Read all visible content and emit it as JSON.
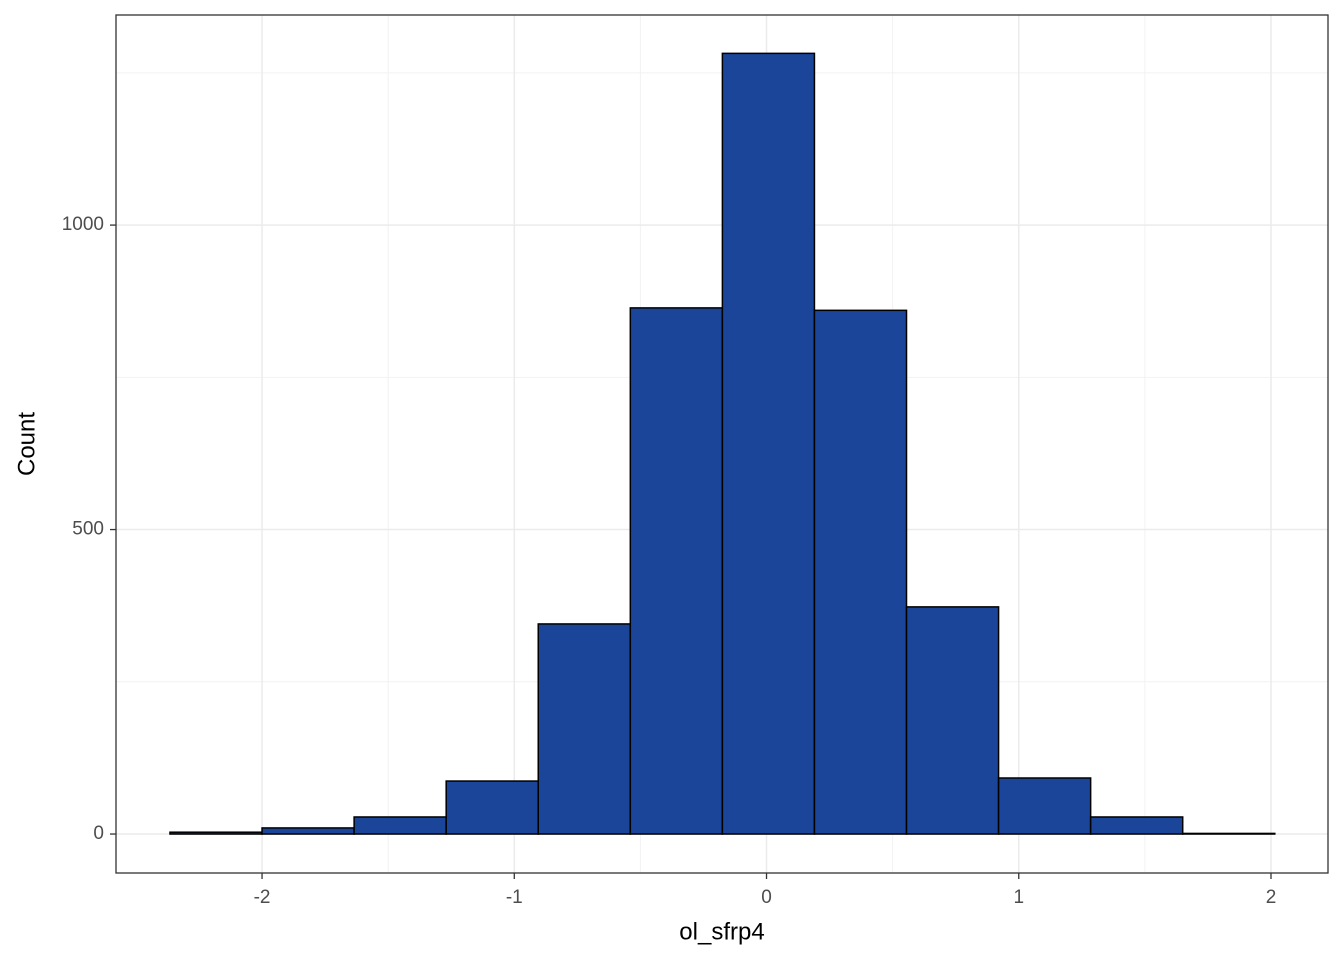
{
  "chart_data": {
    "type": "histogram",
    "x_label": "ol_sfrp4",
    "y_label": "Count",
    "bins": [
      -2.365,
      -2.0,
      -1.635,
      -1.27,
      -0.905,
      -0.54,
      -0.175,
      0.19,
      0.555,
      0.92,
      1.285,
      1.65,
      2.015
    ],
    "values": [
      3,
      10,
      28,
      87,
      345,
      864,
      1282,
      860,
      373,
      92,
      28,
      1
    ],
    "color": "#1a4599",
    "edge_color": "#000000",
    "xlim": [
      -2.579,
      2.226
    ],
    "ylim": [
      -64,
      1345
    ],
    "xticks": [
      -2,
      -1,
      0,
      1,
      2
    ],
    "yticks": [
      0,
      500,
      1000
    ],
    "minor_xticks": [
      -1.5,
      -0.5,
      0.5,
      1.5
    ],
    "minor_yticks": [
      250,
      750,
      1250
    ],
    "grid": true
  }
}
